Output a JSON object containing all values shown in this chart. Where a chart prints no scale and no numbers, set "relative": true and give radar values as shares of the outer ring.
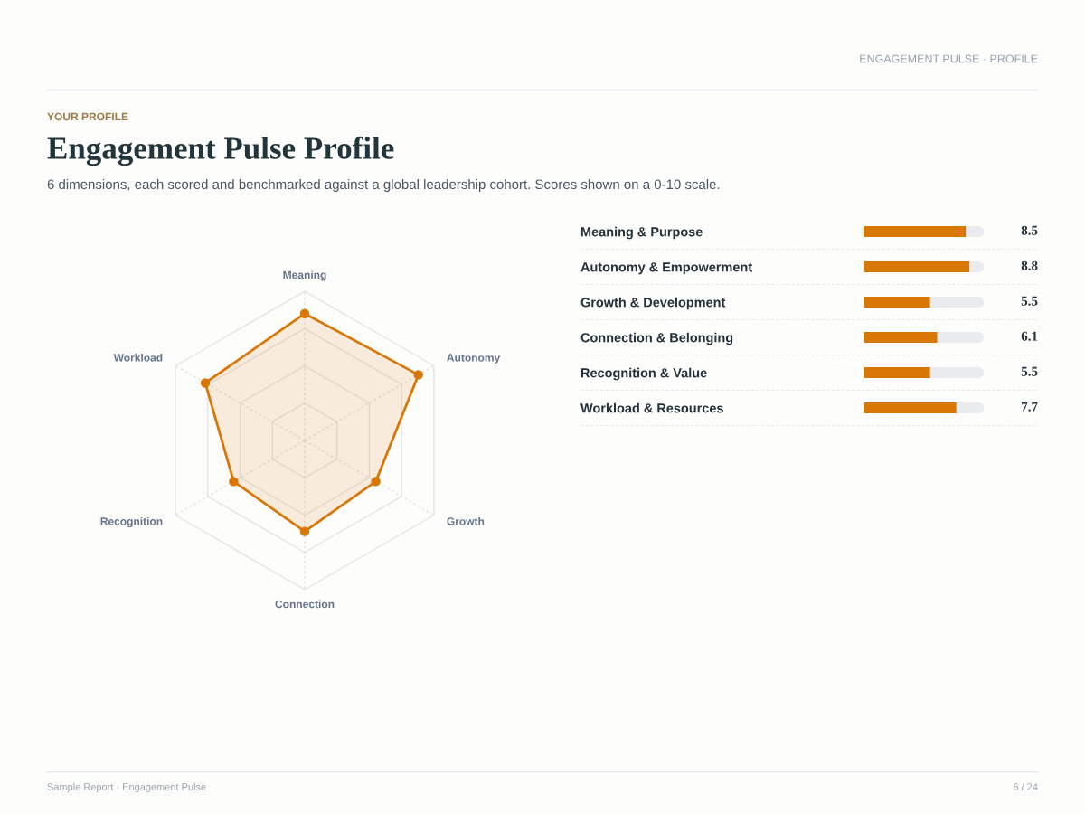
{
  "chart_data": [
    {
      "type": "radar",
      "title": "Engagement Pulse Profile",
      "subtitle": "6 dimensions, each scored and benchmarked against a global leadership cohort. Scores shown on a 0-10 scale.",
      "annotations": [
        "ENGAGEMENT PULSE · PROFILE",
        "YOUR PROFILE",
        "Sample Report · Engagement Pulse",
        "6 / 24"
      ],
      "categories": [
        "Meaning",
        "Autonomy",
        "Growth",
        "Connection",
        "Recognition",
        "Workload"
      ],
      "series": [
        {
          "color": "#d97706",
          "values": [
            0.85,
            0.88,
            0.55,
            0.61,
            0.55,
            0.77
          ]
        }
      ],
      "relative": true,
      "grid": true,
      "marker": "circle"
    },
    {
      "type": "bar",
      "orientation": "horizontal",
      "categories": [
        "Meaning & Purpose",
        "Autonomy & Empowerment",
        "Growth & Development",
        "Connection & Belonging",
        "Recognition & Value",
        "Workload & Resources"
      ],
      "values": [
        8.5,
        8.8,
        5.5,
        6.1,
        5.5,
        7.7
      ],
      "color": "#d97706",
      "xlim": [
        0,
        10
      ],
      "data_labels": true,
      "tick_labels": "y"
    }
  ]
}
